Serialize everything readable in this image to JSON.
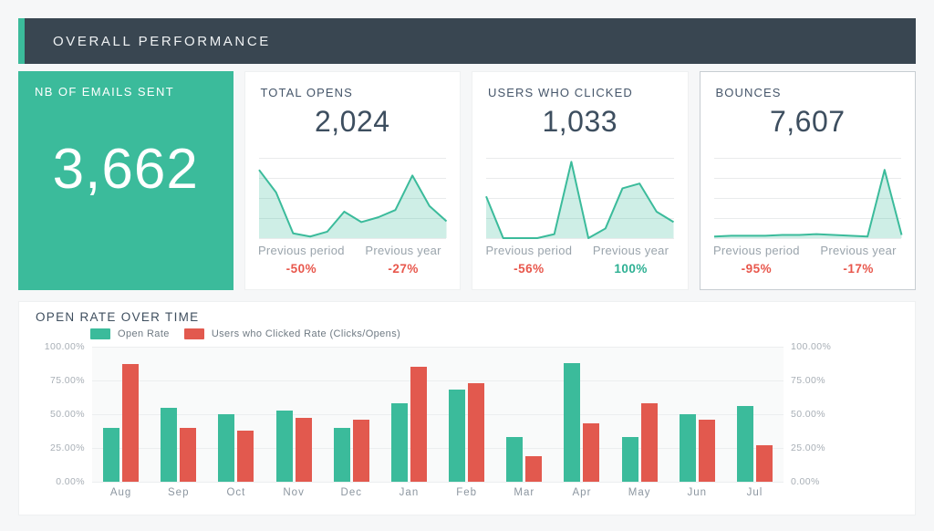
{
  "header": {
    "title": "OVERALL PERFORMANCE"
  },
  "colors": {
    "accent_teal": "#3bbb9b",
    "accent_red": "#e2594e",
    "header_bg": "#394651",
    "negative_text": "#e8574c",
    "positive_text": "#2db093"
  },
  "kpi": {
    "emails_sent": {
      "title": "NB OF EMAILS SENT",
      "value": "3,662"
    },
    "total_opens": {
      "title": "TOTAL OPENS",
      "value": "2,024",
      "previous_period": {
        "label": "Previous period",
        "value": "-50%",
        "trend": "negative"
      },
      "previous_year": {
        "label": "Previous year",
        "value": "-27%",
        "trend": "negative"
      },
      "sparkline": [
        85,
        57,
        6,
        2,
        8,
        33,
        20,
        26,
        35,
        78,
        40,
        21
      ]
    },
    "users_clicked": {
      "title": "USERS WHO CLICKED",
      "value": "1,033",
      "previous_period": {
        "label": "Previous period",
        "value": "-56%",
        "trend": "negative"
      },
      "previous_year": {
        "label": "Previous year",
        "value": "100%",
        "trend": "positive"
      },
      "sparkline": [
        52,
        0,
        0,
        0,
        5,
        95,
        0,
        12,
        62,
        68,
        33,
        20
      ]
    },
    "bounces": {
      "title": "BOUNCES",
      "value": "7,607",
      "previous_period": {
        "label": "Previous period",
        "value": "-95%",
        "trend": "negative"
      },
      "previous_year": {
        "label": "Previous year",
        "value": "-17%",
        "trend": "negative"
      },
      "sparkline": [
        2,
        3,
        3,
        3,
        4,
        4,
        5,
        4,
        3,
        2,
        85,
        4
      ]
    }
  },
  "chart_data": {
    "type": "bar",
    "title": "OPEN RATE OVER TIME",
    "categories": [
      "Aug",
      "Sep",
      "Oct",
      "Nov",
      "Dec",
      "Jan",
      "Feb",
      "Mar",
      "Apr",
      "May",
      "Jun",
      "Jul"
    ],
    "series": [
      {
        "name": "Open Rate",
        "color": "#3bbb9b",
        "values": [
          40,
          55,
          50,
          53,
          40,
          58,
          68,
          33,
          88,
          33,
          50,
          56
        ]
      },
      {
        "name": "Users who Clicked Rate (Clicks/Opens)",
        "color": "#e2594e",
        "values": [
          87,
          40,
          38,
          47,
          46,
          85,
          73,
          19,
          43,
          58,
          46,
          27
        ]
      }
    ],
    "y_ticks": [
      "100.00%",
      "75.00%",
      "50.00%",
      "25.00%",
      "0.00%"
    ],
    "ylim": [
      0,
      100
    ],
    "grid": true,
    "legend_position": "top",
    "dual_axis": true
  }
}
